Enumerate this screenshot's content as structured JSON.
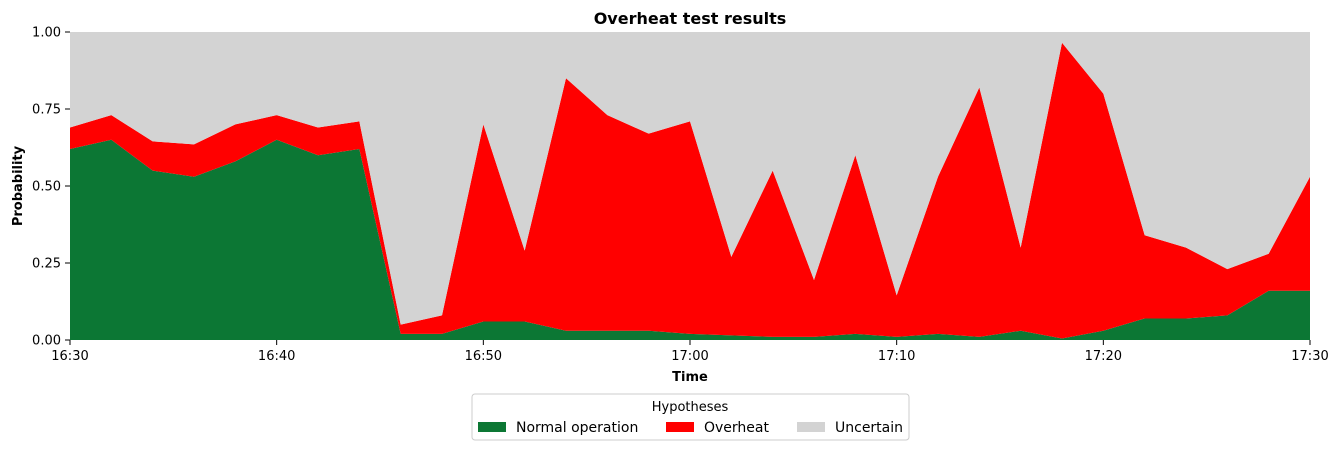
{
  "chart_data": {
    "type": "area",
    "stacked": true,
    "title": "Overheat test results",
    "xlabel": "Time",
    "ylabel": "Probability",
    "xlim": [
      "16:30",
      "17:30"
    ],
    "ylim": [
      0,
      1
    ],
    "x_tick_labels": [
      "16:30",
      "16:40",
      "16:50",
      "17:00",
      "17:10",
      "17:20",
      "17:30"
    ],
    "y_tick_labels": [
      "0.00",
      "0.25",
      "0.50",
      "0.75",
      "1.00"
    ],
    "y_ticks": [
      0,
      0.25,
      0.5,
      0.75,
      1.0
    ],
    "x": [
      "16:30",
      "16:32",
      "16:34",
      "16:36",
      "16:38",
      "16:40",
      "16:42",
      "16:44",
      "16:46",
      "16:48",
      "16:50",
      "16:52",
      "16:54",
      "16:56",
      "16:58",
      "17:00",
      "17:02",
      "17:04",
      "17:06",
      "17:08",
      "17:10",
      "17:12",
      "17:14",
      "17:16",
      "17:18",
      "17:20",
      "17:22",
      "17:24",
      "17:26",
      "17:28",
      "17:30"
    ],
    "series": [
      {
        "name": "Normal operation",
        "color": "#0c7734",
        "values": [
          0.62,
          0.65,
          0.55,
          0.53,
          0.58,
          0.65,
          0.6,
          0.62,
          0.02,
          0.02,
          0.06,
          0.06,
          0.03,
          0.03,
          0.03,
          0.02,
          0.015,
          0.01,
          0.01,
          0.02,
          0.01,
          0.02,
          0.01,
          0.03,
          0.005,
          0.03,
          0.07,
          0.07,
          0.08,
          0.16,
          0.16
        ]
      },
      {
        "name": "Overheat",
        "color": "#ff0000",
        "values": [
          0.07,
          0.08,
          0.095,
          0.105,
          0.12,
          0.08,
          0.09,
          0.09,
          0.03,
          0.06,
          0.64,
          0.23,
          0.82,
          0.7,
          0.64,
          0.69,
          0.255,
          0.54,
          0.185,
          0.58,
          0.135,
          0.51,
          0.81,
          0.27,
          0.96,
          0.77,
          0.27,
          0.23,
          0.15,
          0.12,
          0.37
        ]
      },
      {
        "name": "Uncertain",
        "color": "#d3d3d3",
        "values": [
          0.31,
          0.27,
          0.355,
          0.365,
          0.3,
          0.27,
          0.31,
          0.29,
          0.95,
          0.92,
          0.3,
          0.71,
          0.15,
          0.27,
          0.33,
          0.29,
          0.73,
          0.45,
          0.805,
          0.4,
          0.855,
          0.47,
          0.18,
          0.7,
          0.035,
          0.2,
          0.66,
          0.7,
          0.77,
          0.72,
          0.47
        ]
      }
    ],
    "grid": false,
    "legend": {
      "title": "Hypotheses",
      "placement": "bottom-center",
      "columns": 3
    }
  }
}
